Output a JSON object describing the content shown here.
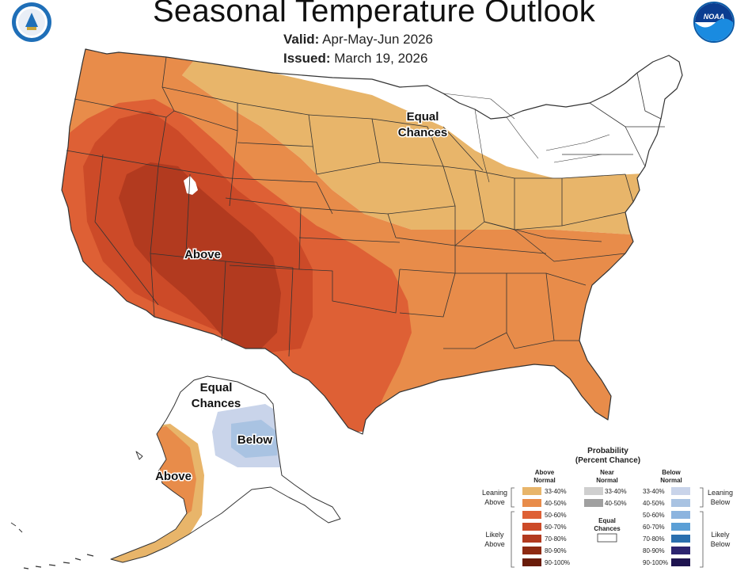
{
  "header": {
    "title": "Seasonal Temperature Outlook",
    "valid_label": "Valid:",
    "valid_value": "Apr-May-Jun 2026",
    "issued_label": "Issued:",
    "issued_value": "March 19, 2026"
  },
  "logos": {
    "left": "doc-seal-icon",
    "right": "noaa-logo-icon",
    "noaa_text": "NOAA"
  },
  "map_labels": {
    "equal_chances_line1": "Equal",
    "equal_chances_line2": "Chances",
    "above_conus": "Above",
    "ak_equal_line1": "Equal",
    "ak_equal_line2": "Chances",
    "ak_below": "Below",
    "ak_above": "Above"
  },
  "colors": {
    "above_33_40": "#e8b56a",
    "above_40_50": "#e88c4a",
    "above_50_60": "#de6035",
    "above_60_70": "#cc4a28",
    "above_70_80": "#b23a1f",
    "above_80_90": "#8e2a12",
    "above_90_100": "#6a1c0a",
    "near_33_40": "#cfcfcf",
    "near_40_50": "#a0a0a0",
    "below_33_40": "#c9d4ea",
    "below_40_50": "#a9c3e2",
    "below_50_60": "#8cb4df",
    "below_60_70": "#5b9fd6",
    "below_70_80": "#2a6fae",
    "below_80_90": "#2c2470",
    "below_90_100": "#1e1450",
    "border": "#333333"
  },
  "legend": {
    "title_line1": "Probability",
    "title_line2": "(Percent Chance)",
    "above_header_1": "Above",
    "above_header_2": "Normal",
    "near_header_1": "Near",
    "near_header_2": "Normal",
    "below_header_1": "Below",
    "below_header_2": "Normal",
    "leaning_above_1": "Leaning",
    "leaning_above_2": "Above",
    "likely_above_1": "Likely",
    "likely_above_2": "Above",
    "leaning_below_1": "Leaning",
    "leaning_below_2": "Below",
    "likely_below_1": "Likely",
    "likely_below_2": "Below",
    "equal_1": "Equal",
    "equal_2": "Chances",
    "above_ranges": [
      "33-40%",
      "40-50%",
      "50-60%",
      "60-70%",
      "70-80%",
      "80-90%",
      "90-100%"
    ],
    "near_ranges": [
      "33-40%",
      "40-50%"
    ],
    "below_ranges": [
      "33-40%",
      "40-50%",
      "50-60%",
      "60-70%",
      "70-80%",
      "80-90%",
      "90-100%"
    ]
  }
}
